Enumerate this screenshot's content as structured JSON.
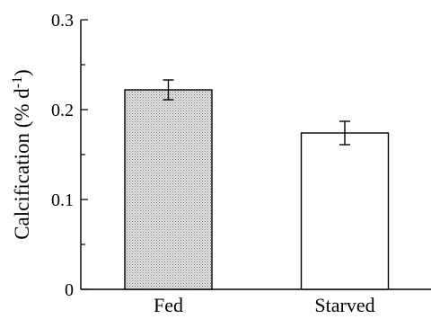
{
  "chart_data": {
    "type": "bar",
    "categories": [
      "Fed",
      "Starved"
    ],
    "values": [
      0.222,
      0.174
    ],
    "errors": [
      0.011,
      0.013
    ],
    "ylabel_main": "Calcification (% d",
    "ylabel_sup": "-1",
    "ylabel_close": ")",
    "ylim": [
      0,
      0.3
    ],
    "yticks": [
      0,
      0.1,
      0.2,
      0.3
    ],
    "ytick_labels": [
      "0",
      "0.1",
      "0.2",
      "0.3"
    ],
    "bar_fills": [
      "#d4d4d4",
      "#ffffff"
    ],
    "bar_patterns": [
      "stipple",
      "none"
    ],
    "grid": false
  }
}
